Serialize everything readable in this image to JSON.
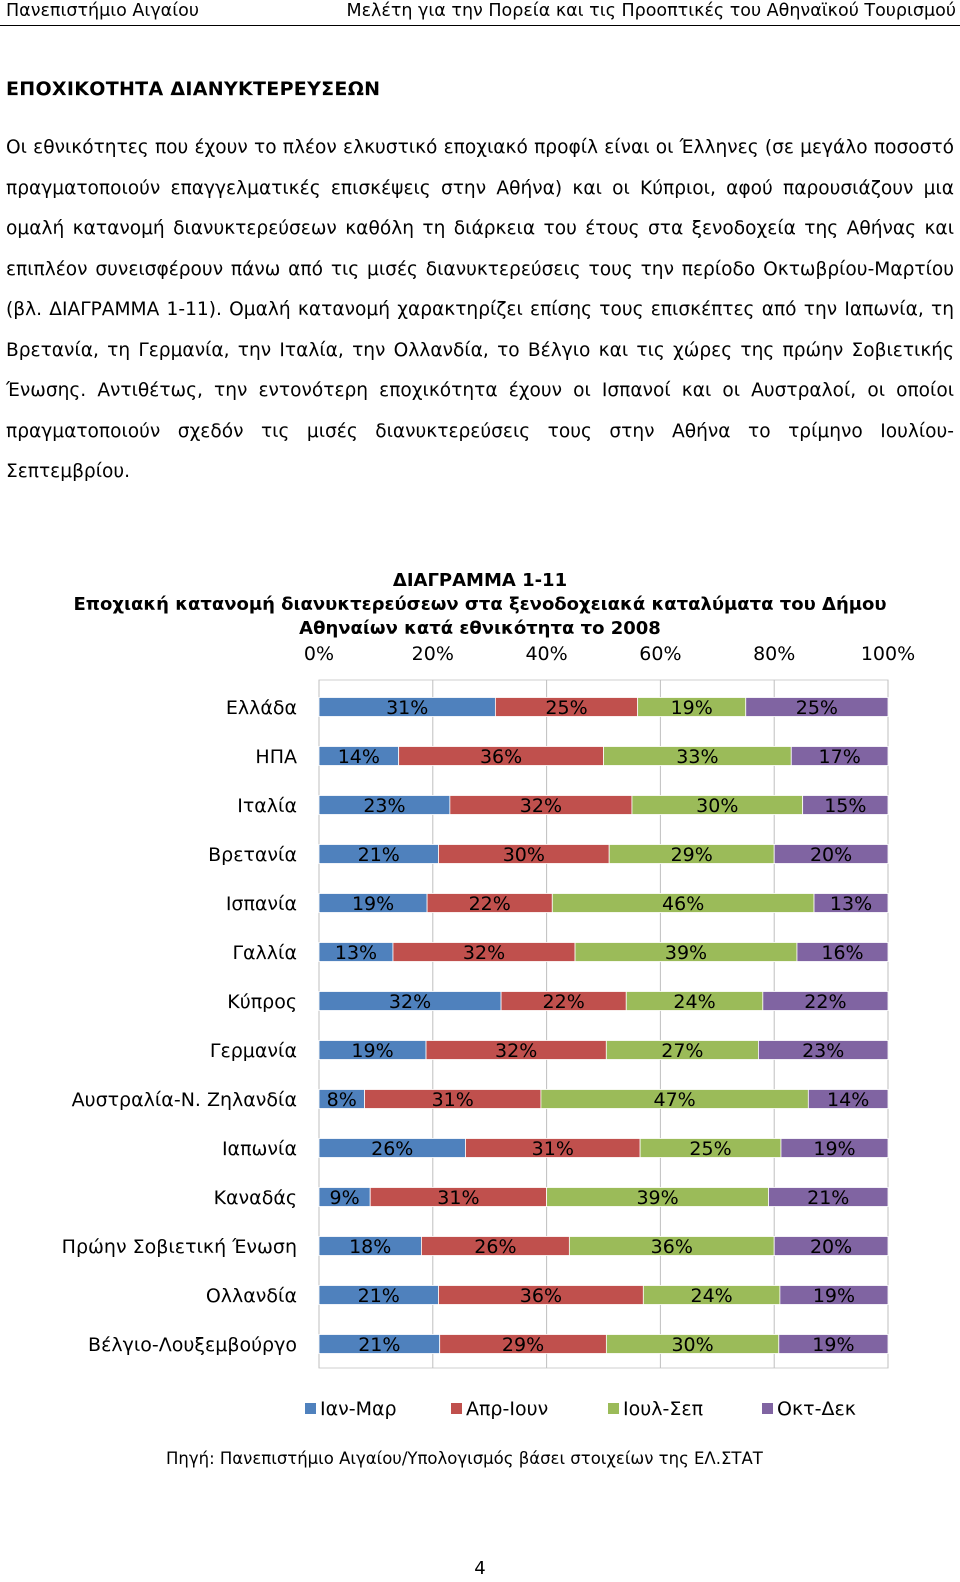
{
  "header": {
    "left": "Πανεπιστήμιο Αιγαίου",
    "right": "Μελέτη για την Πορεία και τις Προοπτικές του Αθηναϊκού Τουρισμού"
  },
  "section_title": "ΕΠΟΧΙΚΟΤΗΤΑ ΔΙΑΝΥΚΤΕΡΕΥΣΕΩΝ",
  "paragraph": "Οι εθνικότητες που έχουν το πλέον ελκυστικό εποχιακό προφίλ είναι οι Έλληνες (σε μεγάλο ποσοστό πραγματοποιούν επαγγελματικές επισκέψεις στην Αθήνα) και οι Κύπριοι, αφού παρουσιάζουν μια ομαλή κατανομή διανυκτερεύσεων καθόλη τη διάρκεια του έτους στα ξενοδοχεία της Αθήνας και επιπλέον συνεισφέρουν πάνω από τις μισές διανυκτερεύσεις τους την περίοδο Οκτωβρίου-Μαρτίου (βλ. ΔΙΑΓΡΑΜΜΑ 1-11). Ομαλή κατανομή χαρακτηρίζει επίσης τους επισκέπτες από την Ιαπωνία, τη Βρετανία, τη Γερμανία, την Ιταλία, την Ολλανδία, το Βέλγιο και τις χώρες της πρώην Σοβιετικής Ένωσης. Αντιθέτως, την εντονότερη εποχικότητα έχουν οι Ισπανοί και οι Αυστραλοί, οι οποίοι πραγματοποιούν σχεδόν τις μισές διανυκτερεύσεις τους στην Αθήνα το τρίμηνο Ιουλίου-Σεπτεμβρίου.",
  "chart_titles": {
    "line1": "ΔΙΑΓΡΑΜΜΑ 1-11",
    "line2": "Εποχιακή κατανομή διανυκτερεύσεων στα ξενοδοχειακά καταλύματα του Δήμου",
    "line3": "Αθηναίων κατά εθνικότητα το 2008"
  },
  "chart_data": {
    "type": "bar",
    "orientation": "horizontal",
    "stacked": "percent",
    "title": "ΔΙΑΓΡΑΜΜΑ 1-11 Εποχιακή κατανομή διανυκτερεύσεων στα ξενοδοχειακά καταλύματα του Δήμου Αθηναίων κατά εθνικότητα το 2008",
    "xlabel": "",
    "ylabel": "",
    "xlim": [
      0,
      100
    ],
    "x_ticks": [
      "0%",
      "20%",
      "40%",
      "60%",
      "80%",
      "100%"
    ],
    "x_axis_position": "top",
    "grid": true,
    "legend_position": "bottom",
    "categories": [
      "Ελλάδα",
      "ΗΠΑ",
      "Ιταλία",
      "Βρετανία",
      "Ισπανία",
      "Γαλλία",
      "Κύπρος",
      "Γερμανία",
      "Αυστραλία-Ν. Ζηλανδία",
      "Ιαπωνία",
      "Καναδάς",
      "Πρώην Σοβιετική Ένωση",
      "Ολλανδία",
      "Βέλγιο-Λουξεμβούργο"
    ],
    "series": [
      {
        "name": "Ιαν-Μαρ",
        "color": "#4f81bd",
        "values": [
          31,
          14,
          23,
          21,
          19,
          13,
          32,
          19,
          8,
          26,
          9,
          18,
          21,
          21
        ]
      },
      {
        "name": "Απρ-Ιουν",
        "color": "#c0504d",
        "values": [
          25,
          36,
          32,
          30,
          22,
          32,
          22,
          32,
          31,
          31,
          31,
          26,
          36,
          29
        ]
      },
      {
        "name": "Ιουλ-Σεπ",
        "color": "#9bbb59",
        "values": [
          19,
          33,
          30,
          29,
          46,
          39,
          24,
          27,
          47,
          25,
          39,
          36,
          24,
          30
        ]
      },
      {
        "name": "Οκτ-Δεκ",
        "color": "#8064a2",
        "values": [
          25,
          17,
          15,
          20,
          13,
          16,
          22,
          23,
          14,
          19,
          21,
          20,
          19,
          19
        ]
      }
    ]
  },
  "source": "Πηγή: Πανεπιστήμιο Αιγαίου/Υπολογισμός βάσει στοιχείων της ΕΛ.ΣΤΑΤ",
  "page_number": "4"
}
